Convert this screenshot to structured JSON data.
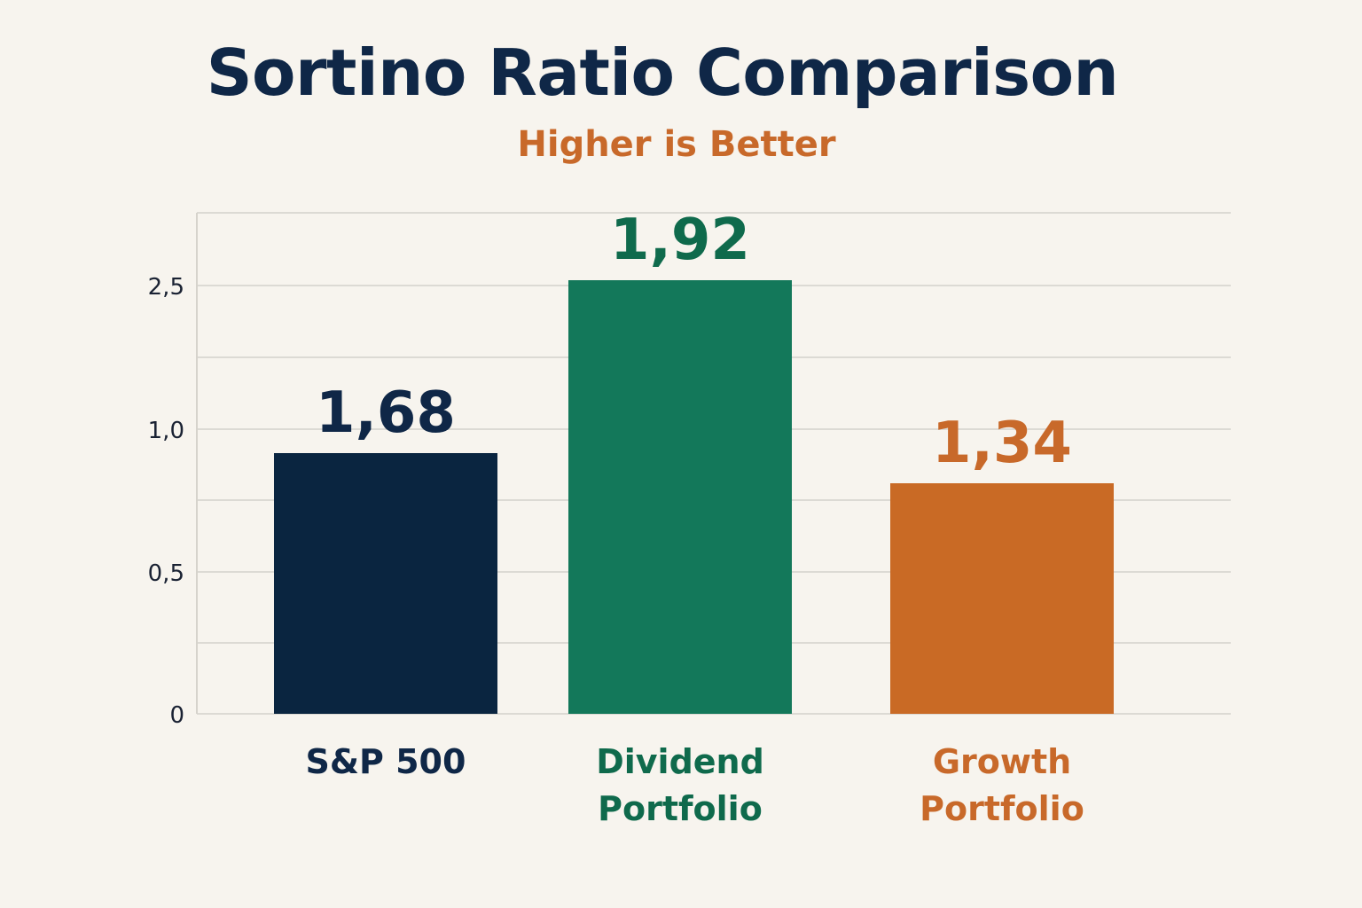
{
  "chart_data": {
    "type": "bar",
    "title": "Sortino Ratio Comparison",
    "subtitle": "Higher is Better",
    "xlabel": "",
    "ylabel": "",
    "grid": true,
    "y_ticks": [
      {
        "value": 0,
        "label": "0"
      },
      {
        "value": 0.5,
        "label": "0,5"
      },
      {
        "value": 1.0,
        "label": "1,0"
      },
      {
        "value": 2.5,
        "label": "2,5"
      }
    ],
    "categories": [
      {
        "name": "S&P 500",
        "lines": [
          "S&P 500"
        ],
        "value": 1.68,
        "value_label": "1,68",
        "color": "#0a2540",
        "label_color": "#0f2747"
      },
      {
        "name": "Dividend Portfolio",
        "lines": [
          "Dividend",
          "Portfolio"
        ],
        "value": 1.92,
        "value_label": "1,92",
        "color": "#13785a",
        "label_color": "#0f6a4c"
      },
      {
        "name": "Growth Portfolio",
        "lines": [
          "Growth",
          "Portfolio"
        ],
        "value": 1.34,
        "value_label": "1,34",
        "color": "#c96a25",
        "label_color": "#c8692a"
      }
    ]
  }
}
